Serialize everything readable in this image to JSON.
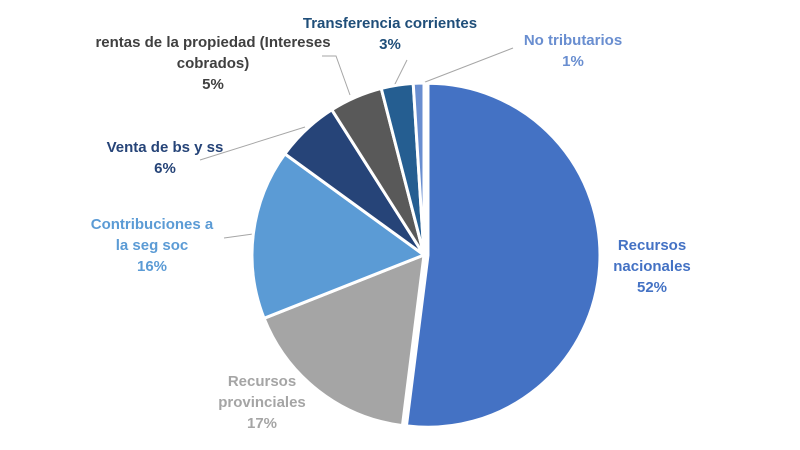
{
  "chart_data": {
    "type": "pie",
    "title": "",
    "legend": "none",
    "slices": [
      {
        "label_lines": [
          "Recursos",
          "nacionales"
        ],
        "value": 52,
        "value_label": "52%",
        "color": "#4472C4",
        "label_color": "#4472C4"
      },
      {
        "label_lines": [
          "Recursos",
          "provinciales"
        ],
        "value": 17,
        "value_label": "17%",
        "color": "#A5A5A5",
        "label_color": "#A5A5A5"
      },
      {
        "label_lines": [
          "Contribuciones a",
          "la seg soc"
        ],
        "value": 16,
        "value_label": "16%",
        "color": "#5B9BD5",
        "label_color": "#5B9BD5"
      },
      {
        "label_lines": [
          "Venta de bs y ss"
        ],
        "value": 6,
        "value_label": "6%",
        "color": "#264478",
        "label_color": "#264478"
      },
      {
        "label_lines": [
          "rentas de la propiedad (Intereses",
          "cobrados)"
        ],
        "value": 5,
        "value_label": "5%",
        "color": "#595959",
        "label_color": "#404040"
      },
      {
        "label_lines": [
          "Transferencia corrientes"
        ],
        "value": 3,
        "value_label": "3%",
        "color": "#255E91",
        "label_color": "#1F4E79"
      },
      {
        "label_lines": [
          "No tributarios"
        ],
        "value": 1,
        "value_label": "1%",
        "color": "#698ED0",
        "label_color": "#698ED0"
      }
    ]
  }
}
